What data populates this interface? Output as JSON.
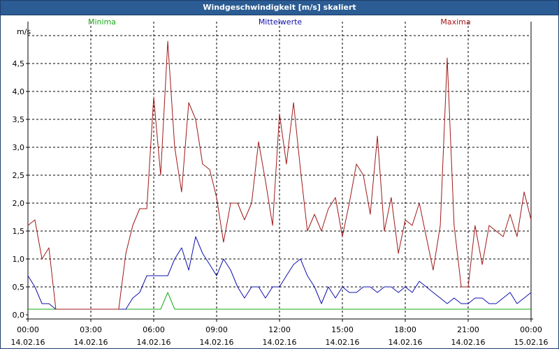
{
  "window": {
    "title": "Windgeschwindigkeit [m/s] skaliert"
  },
  "colors": {
    "minima": "#1aa81a",
    "mittelwerte": "#1010b0",
    "maxima": "#a01818"
  },
  "chart_data": {
    "type": "line",
    "title": "Windgeschwindigkeit [m/s] skaliert",
    "ylabel": "m/s",
    "ylim": [
      0,
      5
    ],
    "y_ticks": [
      "0,0",
      "0,5",
      "1,0",
      "1,5",
      "2,0",
      "2,5",
      "3,0",
      "3,5",
      "4,0",
      "4,5"
    ],
    "xlim": [
      "14.02.16 00:00",
      "15.02.16 00:00"
    ],
    "x_ticks": [
      {
        "time": "00:00",
        "date": "14.02.16"
      },
      {
        "time": "03:00",
        "date": "14.02.16"
      },
      {
        "time": "06:00",
        "date": "14.02.16"
      },
      {
        "time": "09:00",
        "date": "14.02.16"
      },
      {
        "time": "12:00",
        "date": "14.02.16"
      },
      {
        "time": "15:00",
        "date": "14.02.16"
      },
      {
        "time": "18:00",
        "date": "14.02.16"
      },
      {
        "time": "21:00",
        "date": "14.02.16"
      },
      {
        "time": "00:00",
        "date": "15.02.16"
      }
    ],
    "grid": true,
    "x_hours": [
      0,
      0.33,
      0.67,
      1,
      1.33,
      1.67,
      2,
      2.33,
      2.67,
      3,
      3.33,
      3.67,
      4,
      4.33,
      4.67,
      5,
      5.33,
      5.67,
      6,
      6.33,
      6.67,
      7,
      7.33,
      7.67,
      8,
      8.33,
      8.67,
      9,
      9.33,
      9.67,
      10,
      10.33,
      10.67,
      11,
      11.33,
      11.67,
      12,
      12.33,
      12.67,
      13,
      13.33,
      13.67,
      14,
      14.33,
      14.67,
      15,
      15.33,
      15.67,
      16,
      16.33,
      16.67,
      17,
      17.33,
      17.67,
      18,
      18.33,
      18.67,
      19,
      19.33,
      19.67,
      20,
      20.33,
      20.67,
      21,
      21.33,
      21.67,
      22,
      22.33,
      22.67,
      23,
      23.33,
      23.67,
      24
    ],
    "series": [
      {
        "name": "Minima",
        "values": [
          0.1,
          0.1,
          0.1,
          0.1,
          0.1,
          0.1,
          0.1,
          0.1,
          0.1,
          0.1,
          0.1,
          0.1,
          0.1,
          0.1,
          0.1,
          0.1,
          0.1,
          0.1,
          0.1,
          0.1,
          0.4,
          0.1,
          0.1,
          0.1,
          0.1,
          0.1,
          0.1,
          0.1,
          0.1,
          0.1,
          0.1,
          0.1,
          0.1,
          0.1,
          0.1,
          0.1,
          0.1,
          0.1,
          0.1,
          0.1,
          0.1,
          0.1,
          0.1,
          0.1,
          0.1,
          0.1,
          0.1,
          0.1,
          0.1,
          0.1,
          0.1,
          0.1,
          0.1,
          0.1,
          0.1,
          0.1,
          0.1,
          0.1,
          0.1,
          0.1,
          0.1,
          0.1,
          0.1,
          0.1,
          0.1,
          0.1,
          0.1,
          0.1,
          0.1,
          0.1,
          0.1,
          0.1,
          0.1
        ]
      },
      {
        "name": "Mittelwerte",
        "values": [
          0.7,
          0.5,
          0.2,
          0.2,
          0.1,
          0.1,
          0.1,
          0.1,
          0.1,
          0.1,
          0.1,
          0.1,
          0.1,
          0.1,
          0.1,
          0.3,
          0.4,
          0.7,
          0.7,
          0.7,
          0.7,
          1.0,
          1.2,
          0.8,
          1.4,
          1.1,
          0.9,
          0.7,
          1.0,
          0.8,
          0.5,
          0.3,
          0.5,
          0.5,
          0.3,
          0.5,
          0.5,
          0.7,
          0.9,
          1.0,
          0.7,
          0.5,
          0.2,
          0.5,
          0.3,
          0.5,
          0.4,
          0.4,
          0.5,
          0.5,
          0.4,
          0.5,
          0.5,
          0.4,
          0.5,
          0.4,
          0.6,
          0.5,
          0.4,
          0.3,
          0.2,
          0.3,
          0.2,
          0.2,
          0.3,
          0.3,
          0.2,
          0.2,
          0.3,
          0.4,
          0.2,
          0.3,
          0.4
        ]
      },
      {
        "name": "Maxima",
        "values": [
          1.6,
          1.7,
          1.0,
          1.2,
          0.1,
          0.1,
          0.1,
          0.1,
          0.1,
          0.1,
          0.1,
          0.1,
          0.1,
          0.1,
          1.1,
          1.6,
          1.9,
          1.9,
          3.9,
          2.5,
          4.9,
          3.0,
          2.2,
          3.8,
          3.5,
          2.7,
          2.6,
          2.1,
          1.3,
          2.0,
          2.0,
          1.7,
          2.0,
          3.1,
          2.4,
          1.6,
          3.6,
          2.7,
          3.8,
          2.6,
          1.5,
          1.8,
          1.5,
          1.9,
          2.1,
          1.4,
          2.0,
          2.7,
          2.5,
          1.8,
          3.2,
          1.5,
          2.1,
          1.1,
          1.7,
          1.6,
          2.0,
          1.4,
          0.8,
          1.6,
          4.6,
          1.6,
          0.5,
          0.5,
          1.6,
          0.9,
          1.6,
          1.5,
          1.4,
          1.8,
          1.4,
          2.2,
          1.7
        ]
      }
    ]
  }
}
